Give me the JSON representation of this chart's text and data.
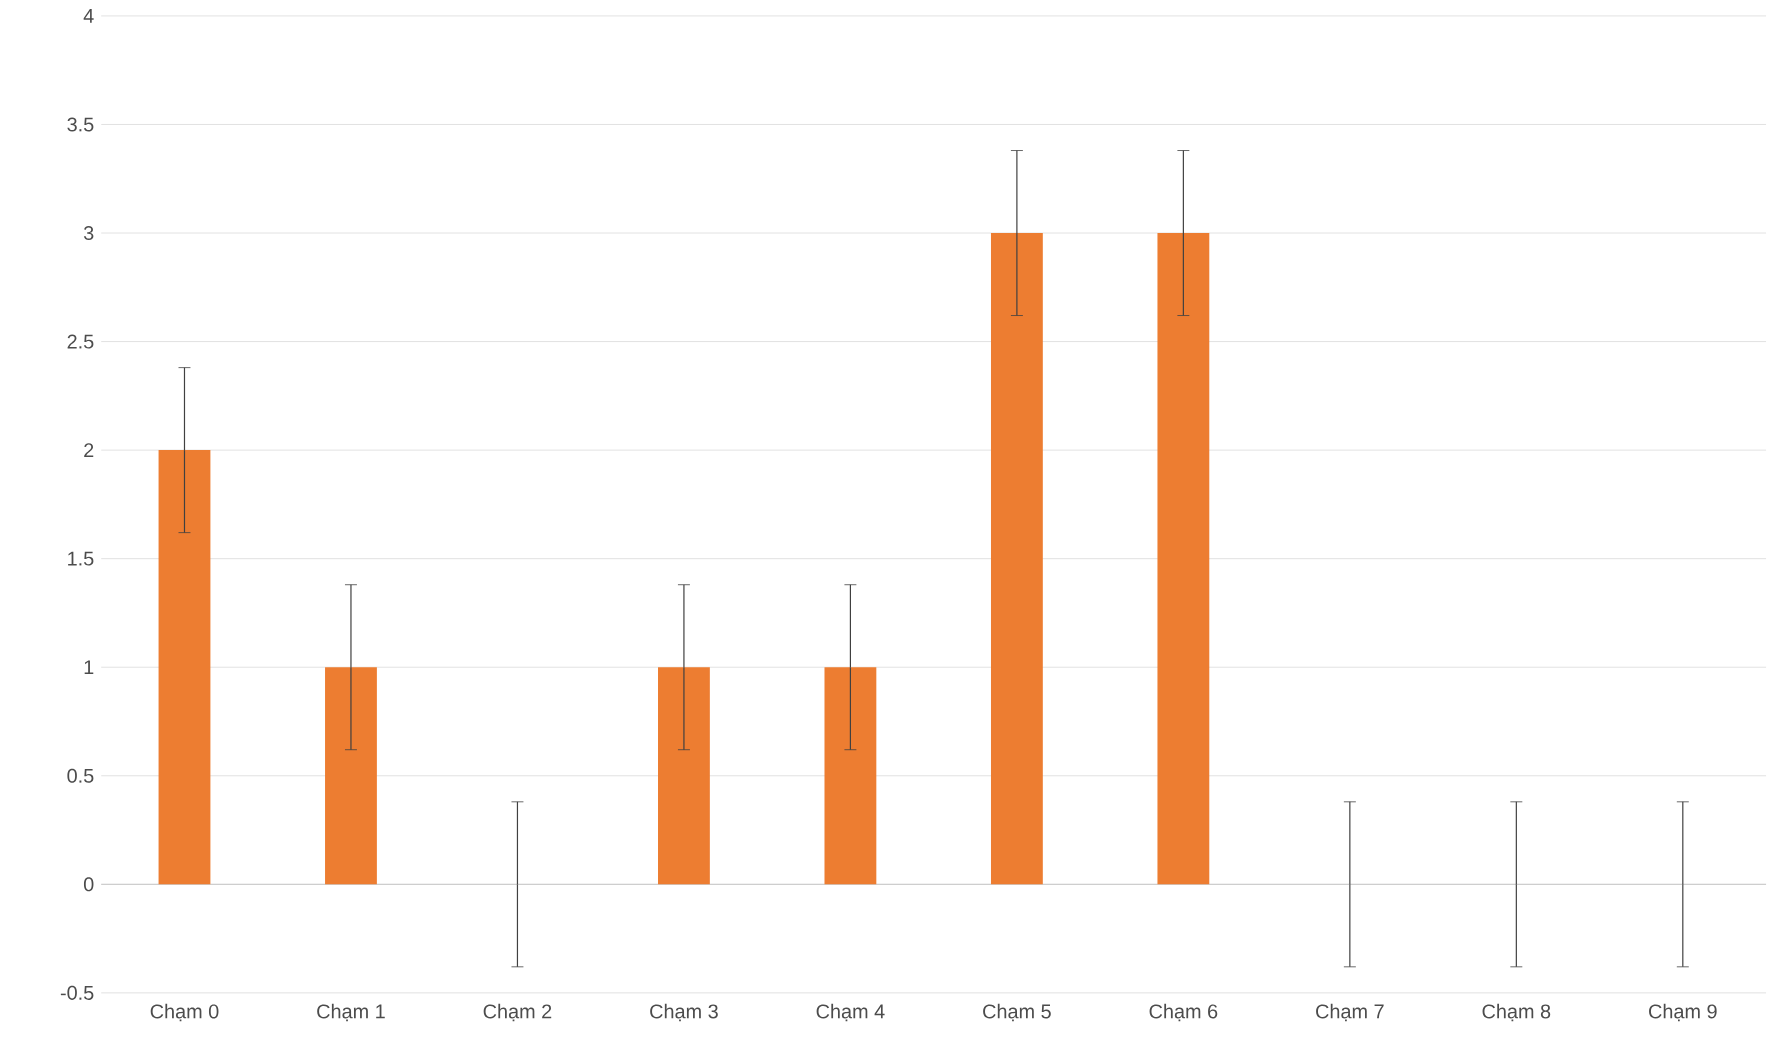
{
  "chart_data": {
    "type": "bar",
    "categories": [
      "Chạm 0",
      "Chạm 1",
      "Chạm 2",
      "Chạm 3",
      "Chạm 4",
      "Chạm 5",
      "Chạm 6",
      "Chạm 7",
      "Chạm 8",
      "Chạm 9"
    ],
    "values": [
      2,
      1,
      0,
      1,
      1,
      3,
      3,
      0,
      0,
      0
    ],
    "errors": [
      0.38,
      0.38,
      0.38,
      0.38,
      0.38,
      0.38,
      0.38,
      0.38,
      0.38,
      0.38
    ],
    "color": "#ed7d31",
    "ylim": [
      -0.5,
      4
    ],
    "yticks": [
      -0.5,
      0,
      0.5,
      1,
      1.5,
      2,
      2.5,
      3,
      3.5,
      4
    ],
    "grid": "y"
  }
}
